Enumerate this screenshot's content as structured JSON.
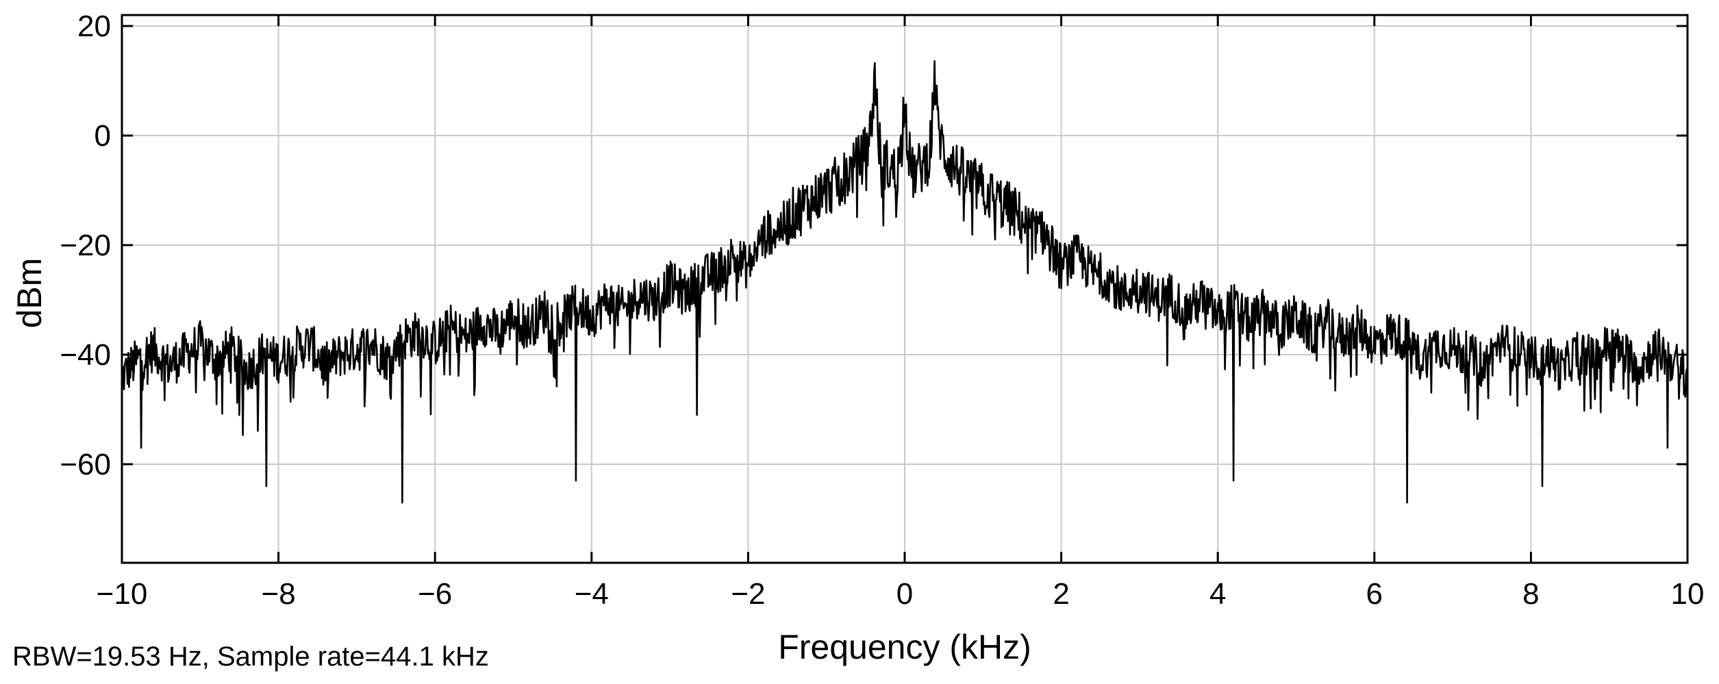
{
  "chart_data": {
    "type": "line",
    "title": "",
    "xlabel": "Frequency (kHz)",
    "ylabel": "dBm",
    "xlim": [
      -10,
      10
    ],
    "ylim": [
      -78,
      22
    ],
    "x_ticks": [
      -10,
      -8,
      -6,
      -4,
      -2,
      0,
      2,
      4,
      6,
      8,
      10
    ],
    "x_tick_labels": [
      "−10",
      "−8",
      "−6",
      "−4",
      "−2",
      "0",
      "2",
      "4",
      "6",
      "8",
      "10"
    ],
    "y_ticks": [
      20,
      0,
      -20,
      -40,
      -60
    ],
    "y_tick_labels": [
      "20",
      "0",
      "−20",
      "−40",
      "−60"
    ],
    "grid": true,
    "line_color": "#000000",
    "grid_color": "#c8c8c8",
    "annotation": "RBW=19.53 Hz, Sample rate=44.1 kHz",
    "series": [
      {
        "x": [
          -10.0,
          -9.8,
          -9.6,
          -9.4,
          -9.2,
          -9.0,
          -8.8,
          -8.6,
          -8.4,
          -8.2,
          -8.0,
          -7.8,
          -7.6,
          -7.4,
          -7.2,
          -7.0,
          -6.8,
          -6.6,
          -6.4,
          -6.2,
          -6.0,
          -5.8,
          -5.6,
          -5.4,
          -5.2,
          -5.0,
          -4.8,
          -4.6,
          -4.4,
          -4.2,
          -4.0,
          -3.8,
          -3.6,
          -3.4,
          -3.2,
          -3.0,
          -2.8,
          -2.6,
          -2.4,
          -2.2,
          -2.0,
          -1.8,
          -1.6,
          -1.4,
          -1.2,
          -1.0,
          -0.8,
          -0.6,
          -0.5,
          -0.42,
          -0.38,
          -0.34,
          -0.3,
          -0.2,
          -0.1,
          -0.04,
          0.0,
          0.04,
          0.1,
          0.2,
          0.3,
          0.34,
          0.38,
          0.42,
          0.5,
          0.6,
          0.8,
          1.0,
          1.2,
          1.4,
          1.6,
          1.8,
          2.0,
          2.2,
          2.4,
          2.6,
          2.8,
          3.0,
          3.2,
          3.4,
          3.6,
          3.8,
          4.0,
          4.2,
          4.4,
          4.6,
          4.8,
          5.0,
          5.2,
          5.4,
          5.6,
          5.8,
          6.0,
          6.2,
          6.4,
          6.6,
          6.8,
          7.0,
          7.2,
          7.4,
          7.6,
          7.8,
          8.0,
          8.2,
          8.4,
          8.6,
          8.8,
          9.0,
          9.2,
          9.4,
          9.6,
          9.8,
          10.0
        ],
        "y": [
          -44,
          -41,
          -39,
          -42,
          -40,
          -38,
          -41,
          -39,
          -43,
          -40,
          -41,
          -39,
          -38,
          -42,
          -40,
          -39,
          -38,
          -41,
          -37,
          -36,
          -38,
          -35,
          -37,
          -34,
          -36,
          -33,
          -35,
          -32,
          -34,
          -31,
          -33,
          -30,
          -32,
          -29,
          -30,
          -27,
          -29,
          -26,
          -25,
          -22,
          -24,
          -18,
          -17,
          -14,
          -12,
          -10,
          -8,
          -5,
          -3,
          2,
          12,
          0,
          -4,
          -6,
          -7,
          -2,
          9,
          -2,
          -7,
          -6,
          -4,
          0,
          12,
          2,
          -3,
          -5,
          -8,
          -10,
          -12,
          -14,
          -17,
          -18,
          -24,
          -22,
          -25,
          -26,
          -29,
          -27,
          -30,
          -29,
          -32,
          -30,
          -33,
          -31,
          -34,
          -32,
          -35,
          -33,
          -36,
          -34,
          -37,
          -35,
          -38,
          -36,
          -37,
          -41,
          -38,
          -39,
          -40,
          -42,
          -38,
          -39,
          -41,
          -40,
          -43,
          -39,
          -41,
          -38,
          -40,
          -42,
          -39,
          -41,
          -44
        ]
      }
    ],
    "dips": [
      {
        "x": -9.75,
        "y": -57
      },
      {
        "x": -8.15,
        "y": -64
      },
      {
        "x": -6.42,
        "y": -67
      },
      {
        "x": -4.2,
        "y": -63
      },
      {
        "x": -2.65,
        "y": -51
      },
      {
        "x": 4.2,
        "y": -63
      },
      {
        "x": 6.42,
        "y": -67
      },
      {
        "x": 8.15,
        "y": -64
      },
      {
        "x": 9.75,
        "y": -57
      }
    ]
  }
}
